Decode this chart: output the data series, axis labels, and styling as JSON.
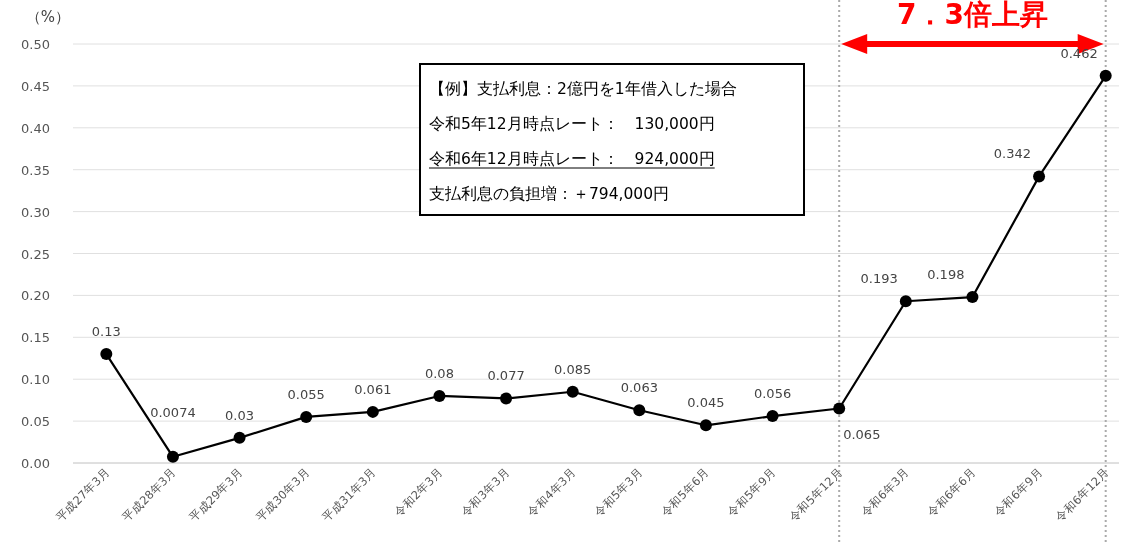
{
  "chart_data": {
    "type": "line",
    "ylabel": "（%）",
    "categories": [
      "平成27年3月",
      "平成28年3月",
      "平成29年3月",
      "平成30年3月",
      "平成31年3月",
      "令和2年3月",
      "令和3年3月",
      "令和4年3月",
      "令和5年3月",
      "令和5年6月",
      "令和5年9月",
      "令和5年12月",
      "令和6年3月",
      "令和6年6月",
      "令和6年9月",
      "令和6年12月"
    ],
    "series": [
      {
        "color": "#000000",
        "values": [
          0.13,
          0.0074,
          0.03,
          0.055,
          0.061,
          0.08,
          0.077,
          0.085,
          0.063,
          0.045,
          0.056,
          0.065,
          0.193,
          0.198,
          0.342,
          0.462
        ]
      }
    ],
    "ylim": [
      0,
      0.5
    ],
    "yticks": [
      {
        "value": 0,
        "label": "0.00"
      },
      {
        "value": 0.05,
        "label": "0.05"
      },
      {
        "value": 0.1,
        "label": "0.10"
      },
      {
        "value": 0.15,
        "label": "0.15"
      },
      {
        "value": 0.2,
        "label": "0.20"
      },
      {
        "value": 0.25,
        "label": "0.25"
      },
      {
        "value": 0.3,
        "label": "0.30"
      },
      {
        "value": 0.35,
        "label": "0.35"
      },
      {
        "value": 0.4,
        "label": "0.40"
      },
      {
        "value": 0.45,
        "label": "0.45"
      },
      {
        "value": 0.5,
        "label": "0.50"
      }
    ],
    "grid": "y",
    "marker": "circle",
    "line_style": "solid",
    "data_labels": true,
    "ref_lines": [
      {
        "axis": "x",
        "value": "令和5年12月",
        "color": "#aaaaaa",
        "line_style": "dotted"
      },
      {
        "axis": "x",
        "value": "令和6年12月",
        "color": "#aaaaaa",
        "line_style": "dotted"
      }
    ],
    "annotations": [
      "【例】支払利息：2億円を1年借入した場合",
      "令和5年12月時点レート：　130,000円",
      "令和6年12月時点レート：　924,000円",
      "支払利息の負担増：＋794,000円",
      "7．3倍上昇"
    ]
  }
}
